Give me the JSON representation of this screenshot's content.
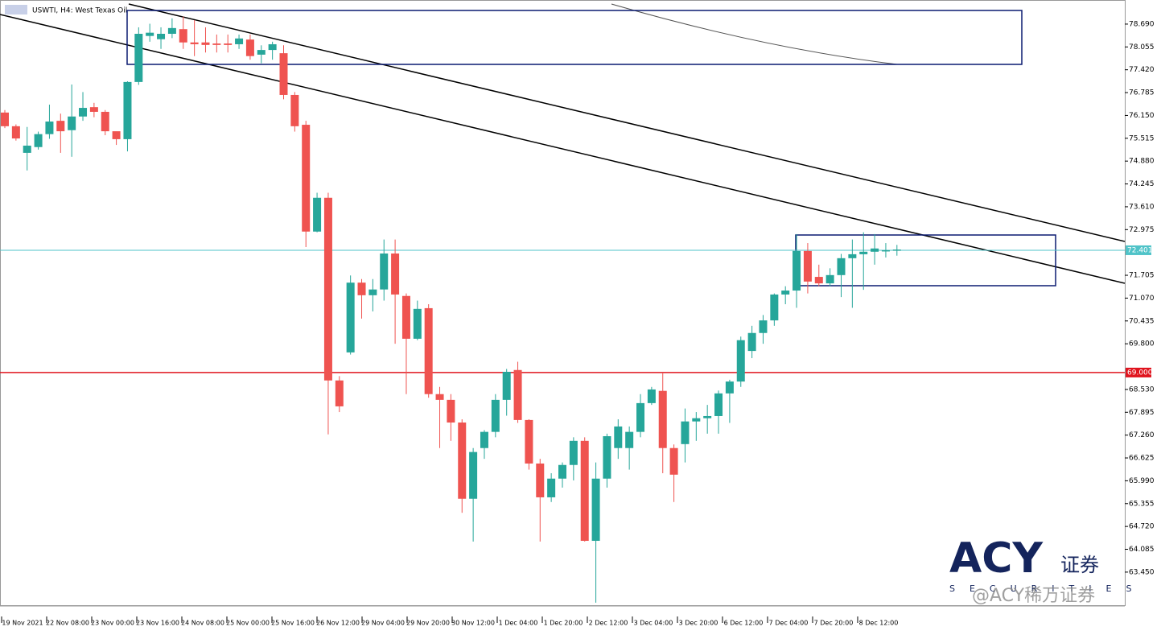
{
  "chart_data": {
    "type": "candlestick",
    "title": "USWTI, H4: West Texas Oil",
    "series": [
      {
        "name": "USWTI",
        "up_color": "#26a69a",
        "down_color": "#ef5350",
        "open": [
          76.23,
          75.85,
          75.11,
          75.27,
          75.63,
          76.0,
          75.74,
          76.12,
          76.38,
          76.25,
          75.71,
          75.49,
          77.08,
          78.36,
          78.27,
          78.42,
          78.55,
          78.18,
          78.18,
          78.15,
          78.15,
          78.13,
          78.26,
          77.84,
          77.97,
          77.88,
          76.72,
          75.89,
          72.92,
          73.86,
          68.78,
          69.56,
          71.5,
          71.15,
          71.31,
          72.31,
          71.13,
          69.94,
          70.79,
          68.4,
          68.24,
          67.61,
          65.49,
          66.9,
          67.35,
          68.24,
          69.07,
          67.68,
          66.47,
          65.53,
          66.05,
          66.43,
          67.1,
          64.32,
          66.05,
          66.9,
          66.9,
          67.35,
          68.15,
          68.49,
          66.9,
          67.01,
          67.64,
          67.73,
          67.79,
          68.42,
          68.75,
          69.6,
          70.1,
          70.45,
          71.17,
          71.28,
          72.38,
          71.66,
          71.48,
          71.71,
          72.18,
          72.29,
          72.36,
          72.38,
          72.4
        ],
        "high": [
          76.3,
          75.9,
          75.83,
          75.7,
          76.45,
          76.2,
          77.01,
          76.8,
          76.5,
          76.3,
          75.7,
          77.1,
          78.6,
          78.7,
          78.6,
          78.85,
          78.9,
          78.8,
          78.6,
          78.4,
          78.4,
          78.4,
          78.4,
          78.1,
          78.2,
          78.1,
          76.8,
          76.0,
          74.0,
          74.0,
          68.9,
          71.7,
          71.6,
          71.6,
          72.7,
          72.7,
          71.2,
          71.0,
          70.9,
          68.6,
          68.4,
          67.7,
          66.9,
          67.4,
          68.4,
          69.1,
          69.3,
          67.7,
          66.6,
          66.2,
          66.5,
          67.2,
          67.2,
          66.5,
          67.3,
          67.7,
          67.5,
          68.4,
          68.6,
          69.0,
          67.0,
          68.0,
          67.9,
          68.1,
          68.5,
          68.8,
          70.0,
          70.3,
          70.6,
          71.2,
          71.4,
          72.85,
          72.6,
          72.0,
          71.9,
          72.3,
          72.7,
          72.9,
          72.85,
          72.6,
          72.55
        ],
        "low": [
          75.8,
          75.45,
          74.62,
          75.2,
          75.5,
          75.11,
          75.0,
          76.0,
          76.1,
          75.6,
          75.33,
          75.15,
          77.0,
          78.2,
          78.0,
          78.3,
          78.0,
          77.8,
          77.9,
          77.9,
          77.9,
          78.0,
          77.7,
          77.6,
          77.7,
          76.6,
          75.7,
          72.49,
          72.9,
          67.28,
          67.9,
          69.5,
          70.5,
          70.7,
          71.0,
          69.8,
          68.4,
          69.9,
          68.3,
          66.9,
          67.1,
          65.1,
          64.3,
          66.6,
          67.2,
          67.8,
          67.6,
          66.3,
          64.3,
          65.4,
          65.8,
          66.0,
          64.3,
          62.6,
          65.8,
          66.6,
          66.3,
          67.2,
          68.1,
          66.2,
          65.4,
          66.5,
          67.1,
          67.3,
          67.3,
          67.6,
          68.6,
          69.4,
          69.8,
          70.3,
          70.9,
          70.8,
          71.2,
          71.4,
          71.4,
          71.1,
          70.8,
          71.3,
          72.0,
          72.2,
          72.25
        ],
        "close": [
          75.85,
          75.51,
          75.31,
          75.63,
          75.98,
          75.71,
          76.12,
          76.36,
          76.25,
          75.71,
          75.49,
          77.08,
          78.42,
          78.45,
          78.42,
          78.58,
          78.18,
          78.13,
          78.11,
          78.11,
          78.11,
          78.29,
          77.8,
          77.97,
          78.13,
          76.72,
          75.85,
          72.92,
          73.86,
          68.78,
          68.06,
          71.5,
          71.15,
          71.31,
          72.31,
          71.17,
          69.94,
          70.77,
          68.4,
          68.24,
          67.61,
          65.49,
          66.79,
          67.35,
          68.24,
          69.02,
          67.68,
          66.47,
          65.53,
          66.05,
          66.43,
          67.1,
          64.32,
          66.05,
          67.23,
          67.5,
          67.35,
          68.15,
          68.53,
          66.9,
          66.16,
          67.64,
          67.73,
          67.79,
          68.42,
          68.75,
          69.9,
          70.1,
          70.45,
          71.17,
          71.28,
          72.38,
          71.53,
          71.48,
          71.71,
          72.18,
          72.29,
          72.36,
          72.45,
          72.401,
          72.42
        ]
      }
    ],
    "ylim": [
      62.53,
      79.36
    ],
    "yticks": [
      {
        "value": 78.69,
        "label": "78.690"
      },
      {
        "value": 78.055,
        "label": "78.055"
      },
      {
        "value": 77.42,
        "label": "77.420"
      },
      {
        "value": 76.785,
        "label": "76.785"
      },
      {
        "value": 76.15,
        "label": "76.150"
      },
      {
        "value": 75.515,
        "label": "75.515"
      },
      {
        "value": 74.88,
        "label": "74.880"
      },
      {
        "value": 74.245,
        "label": "74.245"
      },
      {
        "value": 73.61,
        "label": "73.610"
      },
      {
        "value": 72.975,
        "label": "72.975"
      },
      {
        "value": 71.705,
        "label": "71.705"
      },
      {
        "value": 71.07,
        "label": "71.070"
      },
      {
        "value": 70.435,
        "label": "70.435"
      },
      {
        "value": 69.8,
        "label": "69.800"
      },
      {
        "value": 68.53,
        "label": "68.530"
      },
      {
        "value": 67.895,
        "label": "67.895"
      },
      {
        "value": 67.26,
        "label": "67.260"
      },
      {
        "value": 66.625,
        "label": "66.625"
      },
      {
        "value": 65.99,
        "label": "65.990"
      },
      {
        "value": 65.355,
        "label": "65.355"
      },
      {
        "value": 64.72,
        "label": "64.720"
      },
      {
        "value": 64.085,
        "label": "64.085"
      },
      {
        "value": 63.45,
        "label": "63.450"
      }
    ],
    "hlines": [
      {
        "value": 72.401,
        "label": "72.401",
        "color": "#4fc3c8"
      },
      {
        "value": 69,
        "label": "69.000",
        "color": "#e0141e"
      }
    ],
    "x_labels": [
      "19 Nov 2021",
      "22 Nov 08:00",
      "23 Nov 00:00",
      "23 Nov 16:00",
      "24 Nov 08:00",
      "25 Nov 00:00",
      "25 Nov 16:00",
      "26 Nov 12:00",
      "29 Nov 04:00",
      "29 Nov 20:00",
      "30 Nov 12:00",
      "1 Dec 04:00",
      "1 Dec 20:00",
      "2 Dec 12:00",
      "3 Dec 04:00",
      "3 Dec 20:00",
      "6 Dec 12:00",
      "7 Dec 04:00",
      "7 Dec 20:00",
      "8 Dec 12:00"
    ],
    "watermark": {
      "brand": "ACY",
      "chinese": "证券",
      "sub": "SECURITIES",
      "handle": "@ACY稀万证券"
    }
  }
}
